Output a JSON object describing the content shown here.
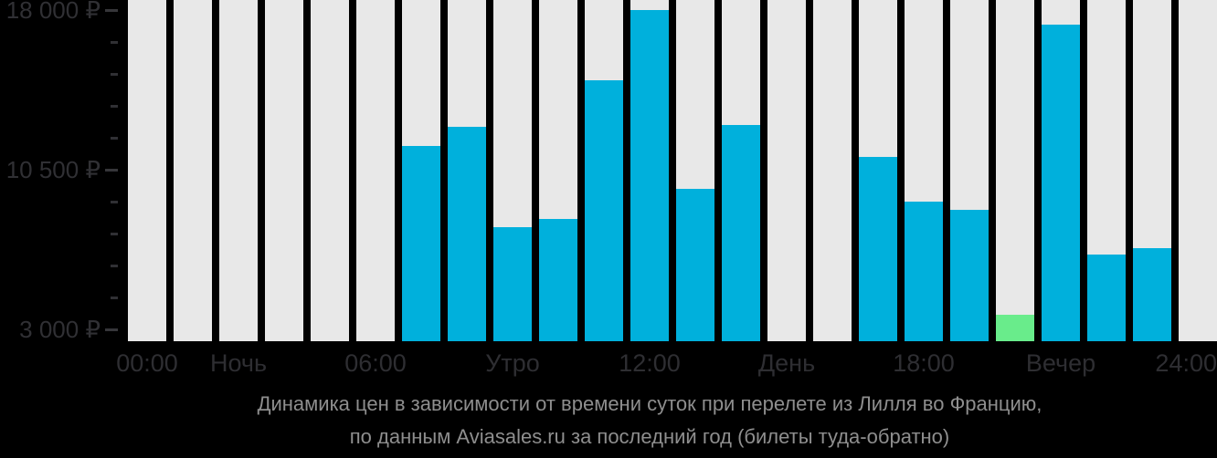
{
  "caption": {
    "line1": "Динамика цен в зависимости от времени суток при перелете из Лилля во Францию,",
    "line2": "по данным Aviasales.ru за последний год (билеты туда-обратно)"
  },
  "chart_data": {
    "type": "bar",
    "title": "Динамика цен в зависимости от времени суток при перелете из Лилля во Францию, по данным Aviasales.ru за последний год (билеты туда-обратно)",
    "y_axis": {
      "min": 3000,
      "max": 18000,
      "tick_step": 1500,
      "currency": "₽",
      "labeled_ticks": [
        {
          "value": 18000,
          "label": "18 000 ₽"
        },
        {
          "value": 10500,
          "label": "10 500 ₽"
        },
        {
          "value": 3000,
          "label": "3 000 ₽"
        }
      ]
    },
    "x_axis": {
      "labels": [
        {
          "text": "00:00",
          "bar": 0
        },
        {
          "text": "Ночь",
          "bar": 2
        },
        {
          "text": "06:00",
          "bar": 5
        },
        {
          "text": "Утро",
          "bar": 8
        },
        {
          "text": "12:00",
          "bar": 11
        },
        {
          "text": "День",
          "bar": 14
        },
        {
          "text": "18:00",
          "bar": 17
        },
        {
          "text": "Вечер",
          "bar": 20
        },
        {
          "text": "24:00",
          "bar": 23
        }
      ]
    },
    "bars": {
      "count": 24,
      "values": [
        null,
        null,
        null,
        null,
        null,
        null,
        11600,
        12500,
        7800,
        8200,
        14700,
        18000,
        9600,
        12600,
        null,
        null,
        11100,
        9000,
        8600,
        3700,
        17300,
        6500,
        6800,
        null
      ],
      "highlight_index": 19,
      "note_highlight": "cheapest-hour-bar"
    },
    "layout_hints": {
      "grid": false,
      "legend": false,
      "bar_background_tracks": true
    },
    "colors": {
      "background": "#000000",
      "track": "#e8e8e8",
      "accent": "#00b0dc",
      "highlight": "#69ec8b",
      "axis_text": "#2e2e32",
      "caption_text": "#8e8e8e"
    }
  }
}
